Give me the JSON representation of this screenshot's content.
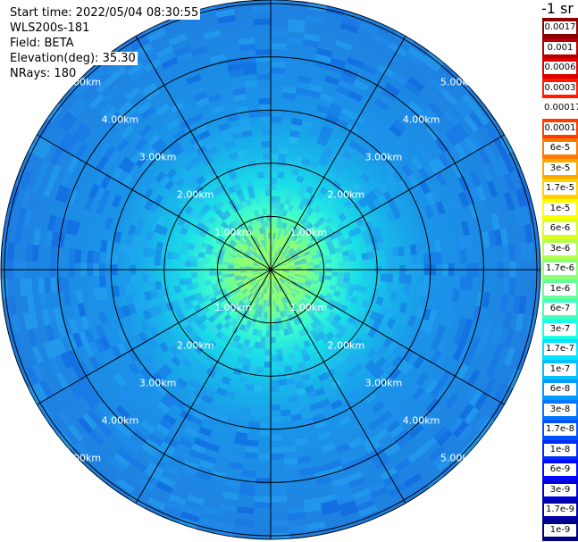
{
  "header": {
    "start_time": "Start time: 2022/05/04 08:30:55",
    "instrument": "WLS200s-181",
    "field": "Field: BETA",
    "elevation_label": "Elevation(deg):",
    "elevation_value": "35.30",
    "nrays": "NRays: 180"
  },
  "colorbar": {
    "unit_label": "-1 sr",
    "levels": [
      {
        "label": "0.0017",
        "color": "#8b0000"
      },
      {
        "label": "0.001",
        "color": "#b40000"
      },
      {
        "label": "0.0006",
        "color": "#dd0000"
      },
      {
        "label": "0.0003",
        "color": "#ff1a00"
      },
      {
        "label": "0.00017",
        "color": "#ffffff"
      },
      {
        "label": "0.0001",
        "color": "#ff3d00"
      },
      {
        "label": "6e-5",
        "color": "#ff7a00"
      },
      {
        "label": "3e-5",
        "color": "#ffa800"
      },
      {
        "label": "1.7e-5",
        "color": "#ffd200"
      },
      {
        "label": "1e-5",
        "color": "#ffff00"
      },
      {
        "label": "6e-6",
        "color": "#d8ff1f"
      },
      {
        "label": "3e-6",
        "color": "#b2ff4d"
      },
      {
        "label": "1.7e-6",
        "color": "#8cff73"
      },
      {
        "label": "1e-6",
        "color": "#66ff99"
      },
      {
        "label": "6e-7",
        "color": "#40ffbf"
      },
      {
        "label": "3e-7",
        "color": "#1affe6"
      },
      {
        "label": "1.7e-7",
        "color": "#00e5ff"
      },
      {
        "label": "1e-7",
        "color": "#00c0ff"
      },
      {
        "label": "6e-8",
        "color": "#009bff"
      },
      {
        "label": "3e-8",
        "color": "#0076ff"
      },
      {
        "label": "1.7e-8",
        "color": "#0050ff"
      },
      {
        "label": "1e-8",
        "color": "#002bff"
      },
      {
        "label": "6e-9",
        "color": "#0008ff"
      },
      {
        "label": "3e-9",
        "color": "#0000d8"
      },
      {
        "label": "1.7e-9",
        "color": "#0000a8"
      },
      {
        "label": "1e-9",
        "color": "#000080"
      }
    ]
  },
  "chart_data": {
    "type": "heatmap",
    "projection": "polar-ppi",
    "field": "BETA",
    "range_unit": "km",
    "range_rings": [
      1.0,
      2.0,
      3.0,
      4.0,
      5.0
    ],
    "range_labels": [
      "1.00km",
      "2.00km",
      "3.00km",
      "4.00km",
      "5.00km"
    ],
    "max_range_km": 5.0,
    "azimuth_spokes_deg": [
      0,
      30,
      60,
      90,
      120,
      150,
      180,
      210,
      240,
      270,
      300,
      330
    ],
    "n_rays": 180,
    "value_profile_by_range_km": [
      {
        "range_km": 0.5,
        "beta": 1e-05
      },
      {
        "range_km": 1.0,
        "beta": 3e-06
      },
      {
        "range_km": 1.5,
        "beta": 6e-07
      },
      {
        "range_km": 2.0,
        "beta": 2e-07
      },
      {
        "range_km": 3.0,
        "beta": 6e-08
      },
      {
        "range_km": 4.0,
        "beta": 3e-08
      },
      {
        "range_km": 5.0,
        "beta": 2e-08
      }
    ]
  }
}
